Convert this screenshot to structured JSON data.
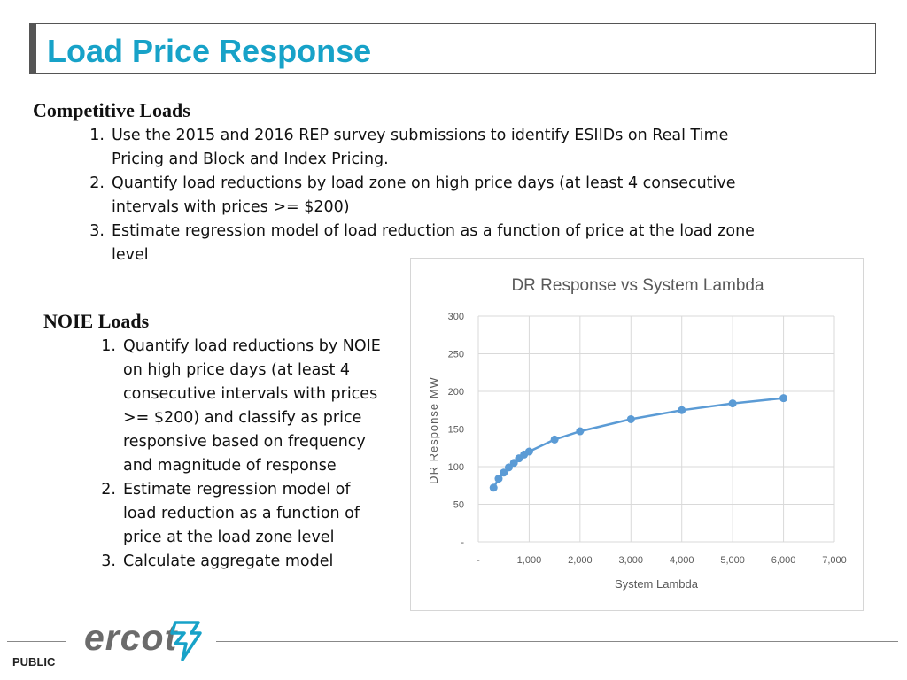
{
  "title": "Load Price Response",
  "competitive": {
    "heading": "Competitive Loads",
    "items": [
      {
        "num": "1.",
        "lines": [
          "Use the 2015 and 2016 REP survey submissions to identify ESIIDs on Real Time",
          "Pricing and Block and Index Pricing."
        ]
      },
      {
        "num": "2.",
        "lines": [
          "Quantify load reductions by load zone on high price days (at least 4 consecutive",
          "intervals with prices >= $200)"
        ]
      },
      {
        "num": "3.",
        "lines": [
          "Estimate regression model of load reduction as a function of price at the load zone",
          "level"
        ]
      }
    ]
  },
  "noie": {
    "heading": "NOIE Loads",
    "items": [
      {
        "num": "1.",
        "lines": [
          "Quantify load reductions by NOIE",
          "on high price days (at least 4",
          "consecutive intervals with prices",
          ">= $200) and classify as price",
          "responsive based on frequency",
          "and magnitude of response"
        ]
      },
      {
        "num": "2.",
        "lines": [
          "Estimate regression model of",
          "load reduction as a function of",
          "price at the load zone level"
        ]
      },
      {
        "num": "3.",
        "lines": [
          "Calculate aggregate model"
        ]
      }
    ]
  },
  "chart_data": {
    "type": "line",
    "title": "DR Response vs System Lambda",
    "xlabel": "System Lambda",
    "ylabel": "DR Response MW",
    "xlim": [
      0,
      7000
    ],
    "ylim": [
      0,
      300
    ],
    "x_ticks": [
      0,
      1000,
      2000,
      3000,
      4000,
      5000,
      6000,
      7000
    ],
    "x_tick_labels": [
      "-",
      "1,000",
      "2,000",
      "3,000",
      "4,000",
      "5,000",
      "6,000",
      "7,000"
    ],
    "y_ticks": [
      0,
      50,
      100,
      150,
      200,
      250,
      300
    ],
    "y_tick_labels": [
      "-",
      "50",
      "100",
      "150",
      "200",
      "250",
      "300"
    ],
    "grid": true,
    "markers": true,
    "color": "#5b9bd5",
    "series": [
      {
        "x": [
          300,
          400,
          500,
          600,
          700,
          800,
          900,
          1000,
          1500,
          2000,
          3000,
          4000,
          5000,
          6000
        ],
        "y": [
          72,
          84,
          92,
          99,
          105,
          111,
          116,
          120,
          136,
          147,
          163,
          175,
          184,
          191
        ]
      }
    ]
  },
  "footer": {
    "label": "PUBLIC",
    "logo_text": "ercot",
    "logo_color": "#17a2c8"
  }
}
